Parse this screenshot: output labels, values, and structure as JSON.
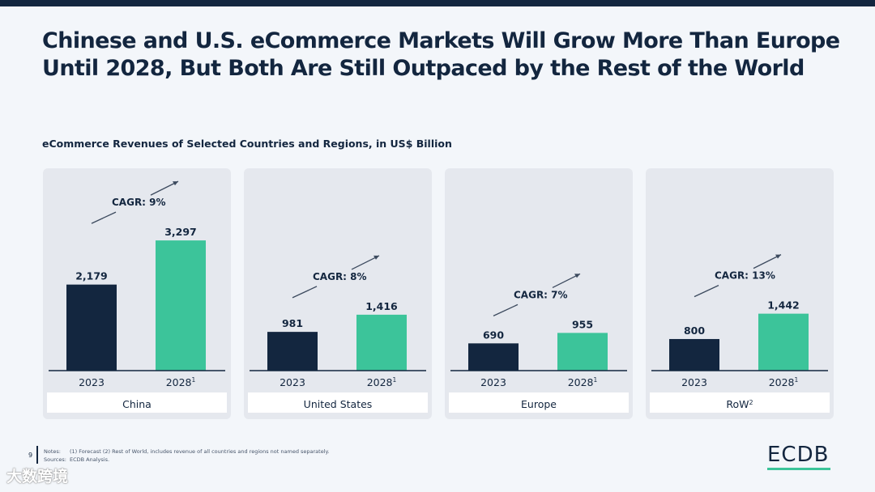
{
  "title": "Chinese and U.S. eCommerce Markets Will Grow More Than Europe\nUntil 2028, But Both Are Still Outpaced by the Rest of the World",
  "subtitle": "eCommerce Revenues of Selected Countries and Regions, in US$ Billion",
  "colors": {
    "bar_2023": "#13263f",
    "bar_2028": "#3cc49a",
    "panel_bg": "#e5e8ee",
    "accent": "#3cc49a"
  },
  "chart_data": [
    {
      "type": "bar",
      "title": "China",
      "categories": [
        "2023",
        "2028"
      ],
      "category_superscripts": [
        "",
        "1"
      ],
      "values": [
        2179,
        3297
      ],
      "value_labels": [
        "2,179",
        "3,297"
      ],
      "annotation": "CAGR: 9%",
      "label_superscript": ""
    },
    {
      "type": "bar",
      "title": "United States",
      "categories": [
        "2023",
        "2028"
      ],
      "category_superscripts": [
        "",
        "1"
      ],
      "values": [
        981,
        1416
      ],
      "value_labels": [
        "981",
        "1,416"
      ],
      "annotation": "CAGR: 8%",
      "label_superscript": ""
    },
    {
      "type": "bar",
      "title": "Europe",
      "categories": [
        "2023",
        "2028"
      ],
      "category_superscripts": [
        "",
        "1"
      ],
      "values": [
        690,
        955
      ],
      "value_labels": [
        "690",
        "955"
      ],
      "annotation": "CAGR: 7%",
      "label_superscript": ""
    },
    {
      "type": "bar",
      "title": "RoW",
      "categories": [
        "2023",
        "2028"
      ],
      "category_superscripts": [
        "",
        "1"
      ],
      "values": [
        800,
        1442
      ],
      "value_labels": [
        "800",
        "1,442"
      ],
      "annotation": "CAGR: 13%",
      "label_superscript": "2"
    }
  ],
  "footer": {
    "page_number": "9",
    "notes_label": "Notes:",
    "notes_text": "(1) Forecast (2) Rest of World, includes revenue of all countries and regions not named separately.",
    "sources_label": "Sources:",
    "sources_text": "ECDB Analysis."
  },
  "logo": "ECDB",
  "watermark": "大数跨境"
}
